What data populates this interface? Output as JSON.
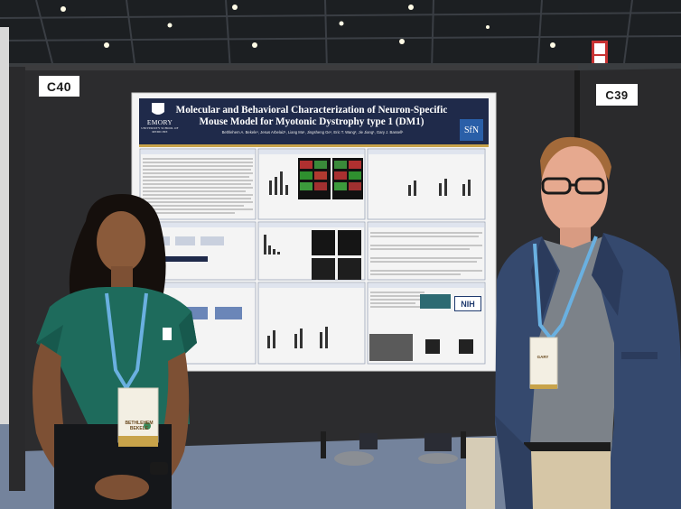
{
  "booths": {
    "left": "C40",
    "right": "C39"
  },
  "poster": {
    "title": "Molecular and Behavioral Characterization of Neuron-Specific Mouse Model for Myotonic Dystrophy type 1 (DM1)",
    "authors": "Bethlehem A. Bekele¹, Jesus Arbelaiz¹, Liang Ma¹, Jingsheng Ge¹, Eric T. Wang², Jie Jiang¹, Gary J. Bassell¹",
    "institution_name": "EMORY",
    "institution_sub": "UNIVERSITY SCHOOL OF MEDICINE",
    "society_logo": "SfN",
    "funder_logo": "NIH"
  },
  "badges": {
    "left_name": "BETHLEHEM BEKELE",
    "right_name": "GARY"
  },
  "colors": {
    "ceiling": "#1c1f22",
    "booth_panel": "#2c2c2e",
    "carpet": "#6f7f98",
    "poster_banner": "#1f2a4a",
    "teal_top": "#1e6b5c",
    "navy_blazer": "#35496e"
  }
}
